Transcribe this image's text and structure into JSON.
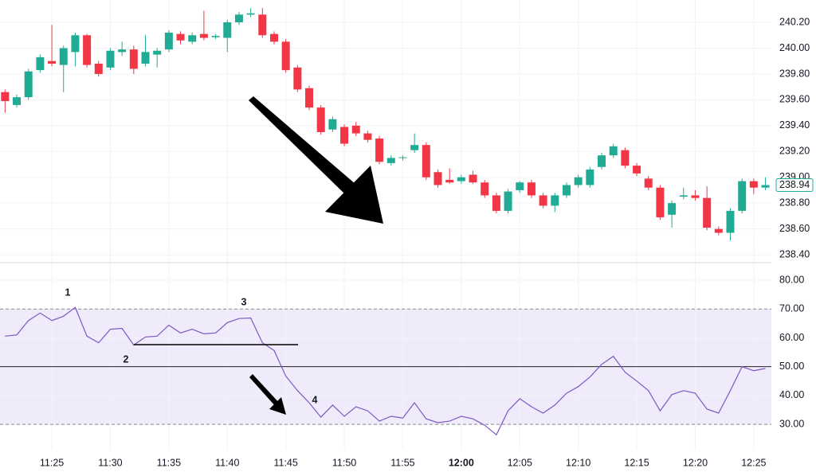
{
  "chart_data": [
    {
      "type": "candlestick",
      "open": [
        239.66,
        239.56,
        239.62,
        239.83,
        239.9,
        239.87,
        239.97,
        240.1,
        239.88,
        239.85,
        239.97,
        239.99,
        239.88,
        239.95,
        239.99,
        240.11,
        240.05,
        240.11,
        240.085,
        240.08,
        240.2,
        240.26,
        240.26,
        240.11,
        240.05,
        239.85,
        239.69,
        239.54,
        239.37,
        239.39,
        239.4,
        239.34,
        239.3,
        239.11,
        239.15,
        239.21,
        239.25,
        239.04,
        238.98,
        238.97,
        239.02,
        238.96,
        238.86,
        238.74,
        238.9,
        238.96,
        238.86,
        238.78,
        238.86,
        238.94,
        238.94,
        239.08,
        239.17,
        239.21,
        239.09,
        238.99,
        238.92,
        238.71,
        238.85,
        238.86,
        238.84,
        238.6,
        238.57,
        238.74,
        238.97,
        238.92
      ],
      "high": [
        239.68,
        239.64,
        239.84,
        239.95,
        240.18,
        240.02,
        240.12,
        240.11,
        239.9,
        240.0,
        240.05,
        240.02,
        240.1,
        240.0,
        240.14,
        240.13,
        240.12,
        240.29,
        240.11,
        240.22,
        240.28,
        240.31,
        240.31,
        240.13,
        240.07,
        239.87,
        239.71,
        239.56,
        239.47,
        239.41,
        239.43,
        239.36,
        239.32,
        239.17,
        239.17,
        239.34,
        239.27,
        239.06,
        239.07,
        239.02,
        239.05,
        238.98,
        238.88,
        238.91,
        238.97,
        238.98,
        238.88,
        238.88,
        238.96,
        239.02,
        239.08,
        239.19,
        239.26,
        239.23,
        239.11,
        239.01,
        238.94,
        238.82,
        238.92,
        238.9,
        238.93,
        238.62,
        238.76,
        238.99,
        238.99,
        239.0
      ],
      "low": [
        239.5,
        239.54,
        239.6,
        239.81,
        239.86,
        239.66,
        239.86,
        239.85,
        239.78,
        239.83,
        239.94,
        239.8,
        239.86,
        239.85,
        239.97,
        240.03,
        240.03,
        240.06,
        240.07,
        239.97,
        240.18,
        240.24,
        240.08,
        240.03,
        239.81,
        239.66,
        239.52,
        239.33,
        239.35,
        239.24,
        239.32,
        239.27,
        239.1,
        239.09,
        239.13,
        239.19,
        238.98,
        238.92,
        238.95,
        238.95,
        238.95,
        238.84,
        238.72,
        238.72,
        238.88,
        238.84,
        238.76,
        238.73,
        238.84,
        238.92,
        238.92,
        239.06,
        239.15,
        239.07,
        239.01,
        238.9,
        238.67,
        238.61,
        238.83,
        238.82,
        238.59,
        238.55,
        238.51,
        238.72,
        238.87,
        238.9
      ],
      "close": [
        239.59,
        239.62,
        239.82,
        239.93,
        239.88,
        240.0,
        240.1,
        239.87,
        239.8,
        239.98,
        239.99,
        239.84,
        239.97,
        239.98,
        240.12,
        240.06,
        240.1,
        240.08,
        240.095,
        240.2,
        240.26,
        240.27,
        240.1,
        240.05,
        239.83,
        239.68,
        239.54,
        239.35,
        239.45,
        239.26,
        239.34,
        239.29,
        239.12,
        239.15,
        239.155,
        239.25,
        239.0,
        238.94,
        238.96,
        239.0,
        238.96,
        238.86,
        238.74,
        238.89,
        238.96,
        238.86,
        238.78,
        238.86,
        238.94,
        239.0,
        239.06,
        239.17,
        239.24,
        239.09,
        239.03,
        238.92,
        238.69,
        238.8,
        238.86,
        238.84,
        238.61,
        238.57,
        238.74,
        238.97,
        238.92,
        238.94
      ],
      "up_color": "#22ab94",
      "down_color": "#f23645",
      "ylim": [
        238.345,
        240.373
      ],
      "yticks": [
        {
          "value": 238.4,
          "label": "238.40"
        },
        {
          "value": 238.6,
          "label": "238.60"
        },
        {
          "value": 238.8,
          "label": "238.80"
        },
        {
          "value": 239.0,
          "label": "239.00"
        },
        {
          "value": 239.2,
          "label": "239.20"
        },
        {
          "value": 239.4,
          "label": "239.40"
        },
        {
          "value": 239.6,
          "label": "239.60"
        },
        {
          "value": 239.8,
          "label": "239.80"
        },
        {
          "value": 240.0,
          "label": "240.00"
        },
        {
          "value": 240.2,
          "label": "240.20"
        }
      ],
      "last_price": {
        "value": 238.94,
        "label": "238.94"
      },
      "grid": true
    },
    {
      "type": "line",
      "categories": [
        null,
        null,
        null,
        null,
        "11:25",
        null,
        null,
        null,
        null,
        "11:30",
        null,
        null,
        null,
        null,
        "11:35",
        null,
        null,
        null,
        null,
        "11:40",
        null,
        null,
        null,
        null,
        "11:45",
        null,
        null,
        null,
        null,
        "11:50",
        null,
        null,
        null,
        null,
        "11:55",
        null,
        null,
        null,
        null,
        "12:00",
        null,
        null,
        null,
        null,
        "12:05",
        null,
        null,
        null,
        null,
        "12:10",
        null,
        null,
        null,
        null,
        "12:15",
        null,
        null,
        null,
        null,
        "12:20",
        null,
        null,
        null,
        null,
        "12:25",
        null
      ],
      "values": [
        60.6,
        61,
        66,
        68.6,
        66,
        67.5,
        70.6,
        60.6,
        58.3,
        63,
        63.3,
        57.5,
        60.3,
        60.6,
        64.4,
        61.7,
        63,
        61.4,
        61.7,
        65.3,
        66.7,
        66.9,
        58.3,
        55.6,
        46.7,
        41.7,
        37.5,
        32.5,
        36.7,
        32.8,
        36.1,
        34.7,
        31.1,
        32.8,
        32.2,
        37.5,
        31.9,
        30.6,
        31.1,
        32.8,
        31.9,
        29.7,
        26.4,
        34.7,
        38.9,
        36.1,
        33.9,
        36.7,
        40.8,
        43.1,
        46.4,
        50.8,
        53.6,
        48.1,
        45,
        41.7,
        34.7,
        40.3,
        41.7,
        40.8,
        35.3,
        33.9,
        41.7,
        50,
        48.6,
        49.4
      ],
      "color": "#7e57c2",
      "ylim": [
        21.2,
        85.8
      ],
      "yticks": [
        {
          "value": 30,
          "label": "30.00"
        },
        {
          "value": 40,
          "label": "40.00"
        },
        {
          "value": 50,
          "label": "50.00"
        },
        {
          "value": 60,
          "label": "60.00"
        },
        {
          "value": 70,
          "label": "70.00"
        },
        {
          "value": 80,
          "label": "80.00"
        }
      ],
      "overbought": 70,
      "oversold": 30,
      "midline": 50,
      "band_color": "#efebfb",
      "annotations": [
        "1",
        "2",
        "3",
        "4"
      ],
      "grid": true
    }
  ]
}
